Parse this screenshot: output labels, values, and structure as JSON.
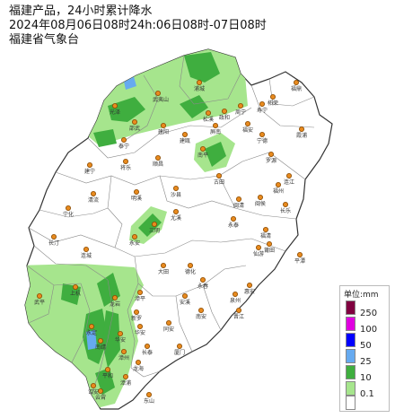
{
  "header": {
    "title": "福建产品，24小时累计降水",
    "period": "2024年08月06日08时24h:06日08时-07日08时",
    "issuer": "福建省气象台"
  },
  "legend": {
    "title": "单位:mm",
    "items": [
      {
        "label": "250",
        "color": "#800040"
      },
      {
        "label": "100",
        "color": "#e000e0"
      },
      {
        "label": "50",
        "color": "#0000ff"
      },
      {
        "label": "25",
        "color": "#66aaf0"
      },
      {
        "label": "10",
        "color": "#3fae3f"
      },
      {
        "label": "0.1",
        "color": "#a6e58d"
      },
      {
        "label": "",
        "color": "#ffffff"
      }
    ]
  },
  "colors": {
    "boundary": "#555555",
    "rain_light": "#a6e58d",
    "rain_moderate": "#3fae3f",
    "rain_heavy": "#66aaf0",
    "station": "#e88a1e"
  },
  "stations": [
    "浦城",
    "武夷山",
    "光泽",
    "邵武",
    "建阳",
    "松溪",
    "政和",
    "建瓯",
    "顺昌",
    "将乐",
    "泰宁",
    "建宁",
    "明溪",
    "清流",
    "宁化",
    "长汀",
    "连城",
    "上杭",
    "武平",
    "永定",
    "龙岩",
    "漳平",
    "新罗",
    "南平",
    "古田",
    "屏南",
    "寿宁",
    "周宁",
    "福安",
    "柘荣",
    "福鼎",
    "霞浦",
    "宁德",
    "罗源",
    "连江",
    "福州",
    "闽侯",
    "长乐",
    "福清",
    "平潭",
    "永泰",
    "闽清",
    "尤溪",
    "沙县",
    "三明",
    "永安",
    "大田",
    "德化",
    "永春",
    "安溪",
    "南安",
    "晋江",
    "泉州",
    "惠安",
    "仙游",
    "莆田",
    "华安",
    "长泰",
    "厦门",
    "同安",
    "漳州",
    "龙海",
    "南靖",
    "平和",
    "漳浦",
    "云霄",
    "诏安",
    "东山",
    "华安"
  ]
}
